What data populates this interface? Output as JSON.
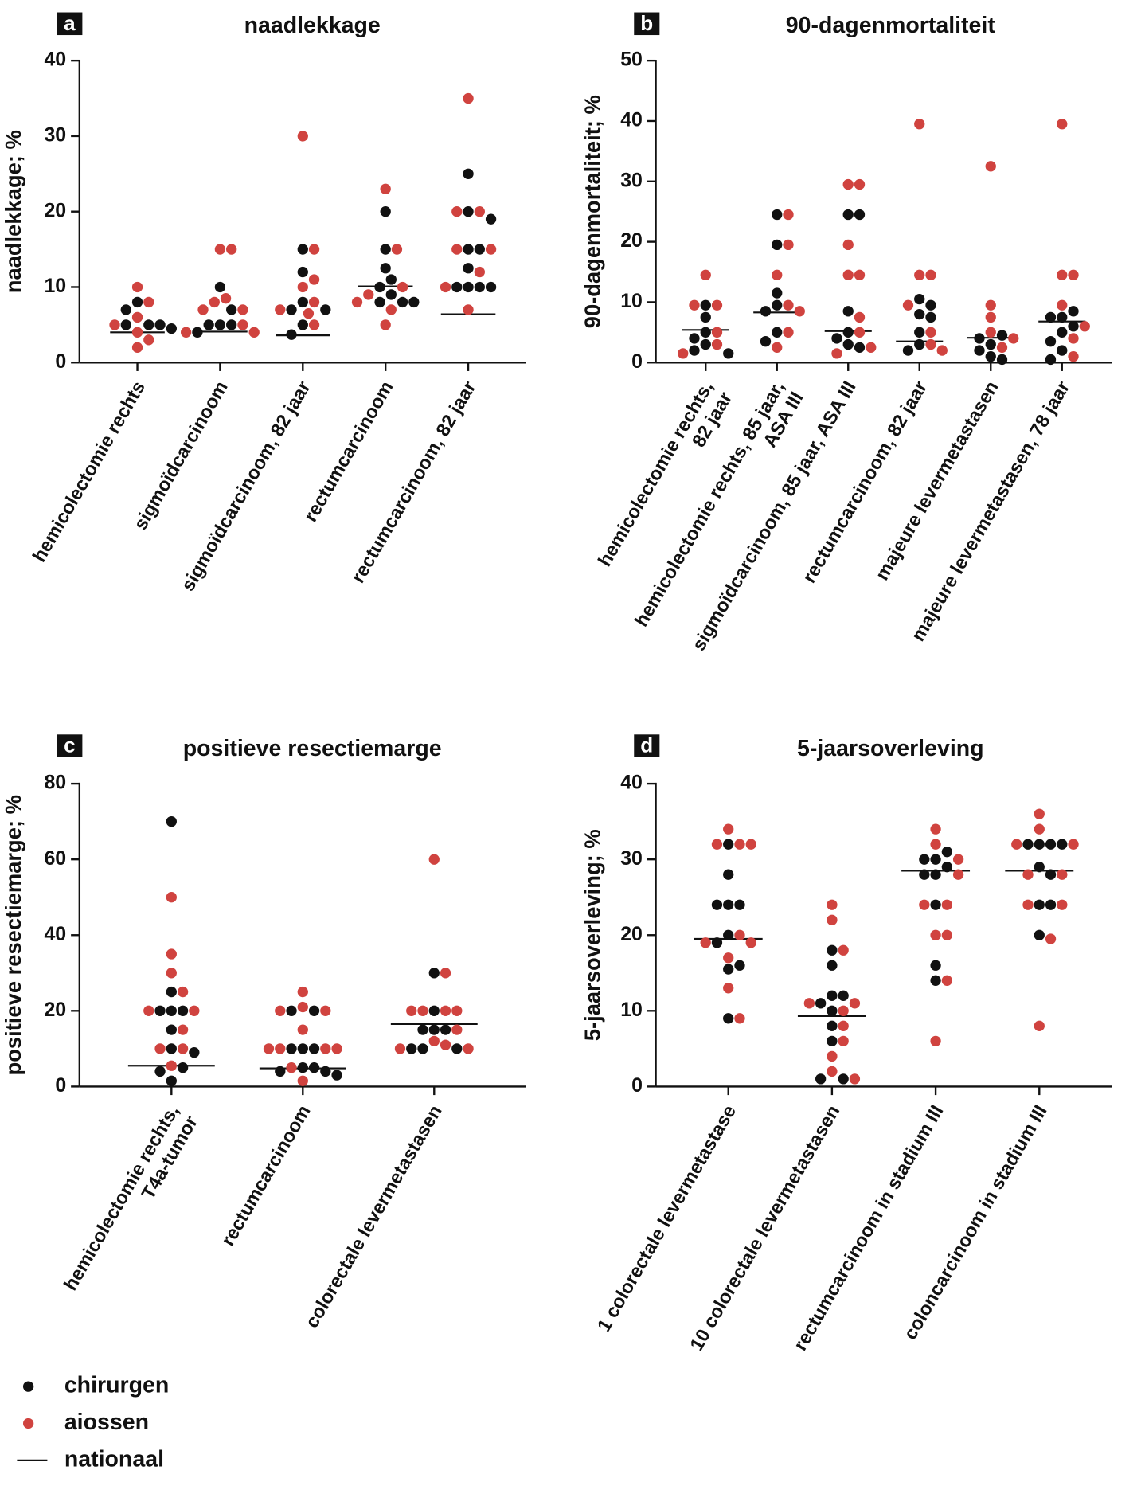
{
  "legend": [
    {
      "name": "chirurgen",
      "color": "#111111"
    },
    {
      "name": "aiossen",
      "color": "#d0433f"
    },
    {
      "name": "nationaal",
      "color": "#111111"
    }
  ],
  "chart_data": [
    {
      "type": "strip",
      "panel": "a",
      "title": "naadlekkage",
      "ylabel": "naadlekkage; %",
      "categories": [
        "hemicolectomie rechts",
        "sigmoïdcarcinoom",
        "sigmoïdcarcinoom, 82 jaar",
        "rectumcarcinoom",
        "rectumcarcinoom, 82 jaar"
      ],
      "series": [
        {
          "values": [
            [
              8,
              7,
              5,
              5,
              5,
              4.5
            ],
            [
              10,
              7,
              5,
              5,
              5,
              4
            ],
            [
              15,
              12,
              8,
              7,
              7,
              5,
              3.7
            ],
            [
              20,
              15,
              12.5,
              11,
              10,
              9,
              8,
              8,
              8
            ],
            [
              25,
              20,
              19,
              15,
              15,
              12.5,
              10,
              10,
              10,
              10
            ]
          ]
        },
        {
          "values": [
            [
              10,
              8,
              6,
              5,
              4,
              3,
              2
            ],
            [
              15,
              15,
              8.5,
              8,
              7,
              7,
              5,
              4,
              4
            ],
            [
              30,
              15,
              11,
              10,
              8,
              7,
              6.5,
              5
            ],
            [
              23,
              15,
              10,
              9,
              8,
              7,
              5
            ],
            [
              35,
              20,
              20,
              15,
              15,
              12,
              10,
              7
            ]
          ]
        },
        {
          "values": [
            4,
            4.1,
            3.6,
            10.1,
            6.4
          ]
        }
      ],
      "ylim": [
        0,
        40
      ],
      "yticks": [
        0,
        10,
        20,
        30,
        40
      ]
    },
    {
      "type": "strip",
      "panel": "b",
      "title": "90-dagenmortaliteit",
      "ylabel": "90-dagenmortaliteit; %",
      "categories": [
        "hemicolectomie rechts,\n82 jaar",
        "hemicolectomie rechts, 85 jaar,\nASA III",
        "sigmoïdcarcinoom, 85 jaar, ASA III",
        "rectumcarcinoom, 82 jaar",
        "majeure levermetastasen",
        "majeure levermetastasen, 78 jaar"
      ],
      "series": [
        {
          "values": [
            [
              9.5,
              7.5,
              5,
              4,
              3,
              2,
              1.5
            ],
            [
              24.5,
              19.5,
              11.5,
              9.5,
              8.5,
              5,
              3.5
            ],
            [
              24.5,
              24.5,
              8.5,
              5,
              4,
              3,
              2.5
            ],
            [
              10.5,
              9.5,
              8,
              7.5,
              5,
              3,
              2
            ],
            [
              4.5,
              4,
              3,
              2,
              1,
              0.5
            ],
            [
              8.5,
              7.5,
              7.5,
              6,
              5,
              3.5,
              2,
              0.5
            ]
          ]
        },
        {
          "values": [
            [
              14.5,
              9.5,
              9.5,
              5,
              3,
              1.5
            ],
            [
              24.5,
              19.5,
              14.5,
              9.5,
              8.5,
              5,
              2.5
            ],
            [
              29.5,
              29.5,
              19.5,
              14.5,
              14.5,
              7.5,
              5,
              2.5,
              1.5
            ],
            [
              39.5,
              14.5,
              14.5,
              9.5,
              5,
              3,
              2
            ],
            [
              32.5,
              9.5,
              7.5,
              5,
              4,
              2.5
            ],
            [
              39.5,
              14.5,
              14.5,
              9.5,
              6,
              4,
              1
            ]
          ]
        },
        {
          "values": [
            5.4,
            8.3,
            5.2,
            3.5,
            4.1,
            6.8
          ]
        }
      ],
      "ylim": [
        0,
        50
      ],
      "yticks": [
        0,
        10,
        20,
        30,
        40,
        50
      ]
    },
    {
      "type": "strip",
      "panel": "c",
      "title": "positieve resectiemarge",
      "ylabel": "positieve resectiemarge; %",
      "categories": [
        "hemicolectomie rechts,\nT4a-tumor",
        "rectumcarcinoom",
        "colorectale levermetastasen"
      ],
      "series": [
        {
          "values": [
            [
              70,
              25,
              20,
              20,
              20,
              15,
              10,
              9,
              5,
              4,
              1.5
            ],
            [
              20,
              20,
              10,
              10,
              10,
              5,
              5,
              4,
              3,
              4
            ],
            [
              30,
              20,
              15,
              15,
              15,
              10,
              10,
              10
            ]
          ]
        },
        {
          "values": [
            [
              50,
              35,
              30,
              25,
              20,
              20,
              15,
              10,
              10,
              5.5
            ],
            [
              25,
              21,
              20,
              20,
              15,
              10,
              10,
              10,
              10,
              5,
              1.5
            ],
            [
              60,
              30,
              20,
              20,
              20,
              20,
              15,
              12,
              10,
              10,
              11
            ]
          ]
        },
        {
          "values": [
            5.5,
            4.8,
            16.5
          ]
        }
      ],
      "ylim": [
        0,
        80
      ],
      "yticks": [
        0,
        20,
        40,
        60,
        80
      ]
    },
    {
      "type": "strip",
      "panel": "d",
      "title": "5-jaarsoverleving",
      "ylabel": "5-jaarsoverleving; %",
      "categories": [
        "1 colorectale levermetastase",
        "10 colorectale levermetastasen",
        "rectumcarcinoom in stadium III",
        "coloncarcinoom in stadium III"
      ],
      "series": [
        {
          "values": [
            [
              32,
              28,
              24,
              24,
              24,
              20,
              19,
              16,
              15.5,
              9
            ],
            [
              18,
              16,
              12,
              12,
              11,
              10,
              8,
              6,
              1,
              1
            ],
            [
              31,
              30,
              30,
              29,
              28,
              28,
              24,
              16,
              14
            ],
            [
              32,
              32,
              32,
              32,
              29,
              28,
              24,
              24,
              20
            ]
          ]
        },
        {
          "values": [
            [
              34,
              32,
              32,
              32,
              20,
              19,
              19,
              17,
              13,
              9
            ],
            [
              24,
              22,
              18,
              11,
              11,
              10,
              8,
              6,
              4,
              2,
              1
            ],
            [
              34,
              32,
              30,
              28,
              24,
              24,
              20,
              20,
              14,
              6
            ],
            [
              36,
              34,
              32,
              32,
              28,
              28,
              24,
              24,
              19.5,
              8
            ]
          ]
        },
        {
          "values": [
            19.5,
            9.3,
            28.5,
            28.5
          ]
        }
      ],
      "ylim": [
        0,
        40
      ],
      "yticks": [
        0,
        10,
        20,
        30,
        40
      ]
    }
  ]
}
